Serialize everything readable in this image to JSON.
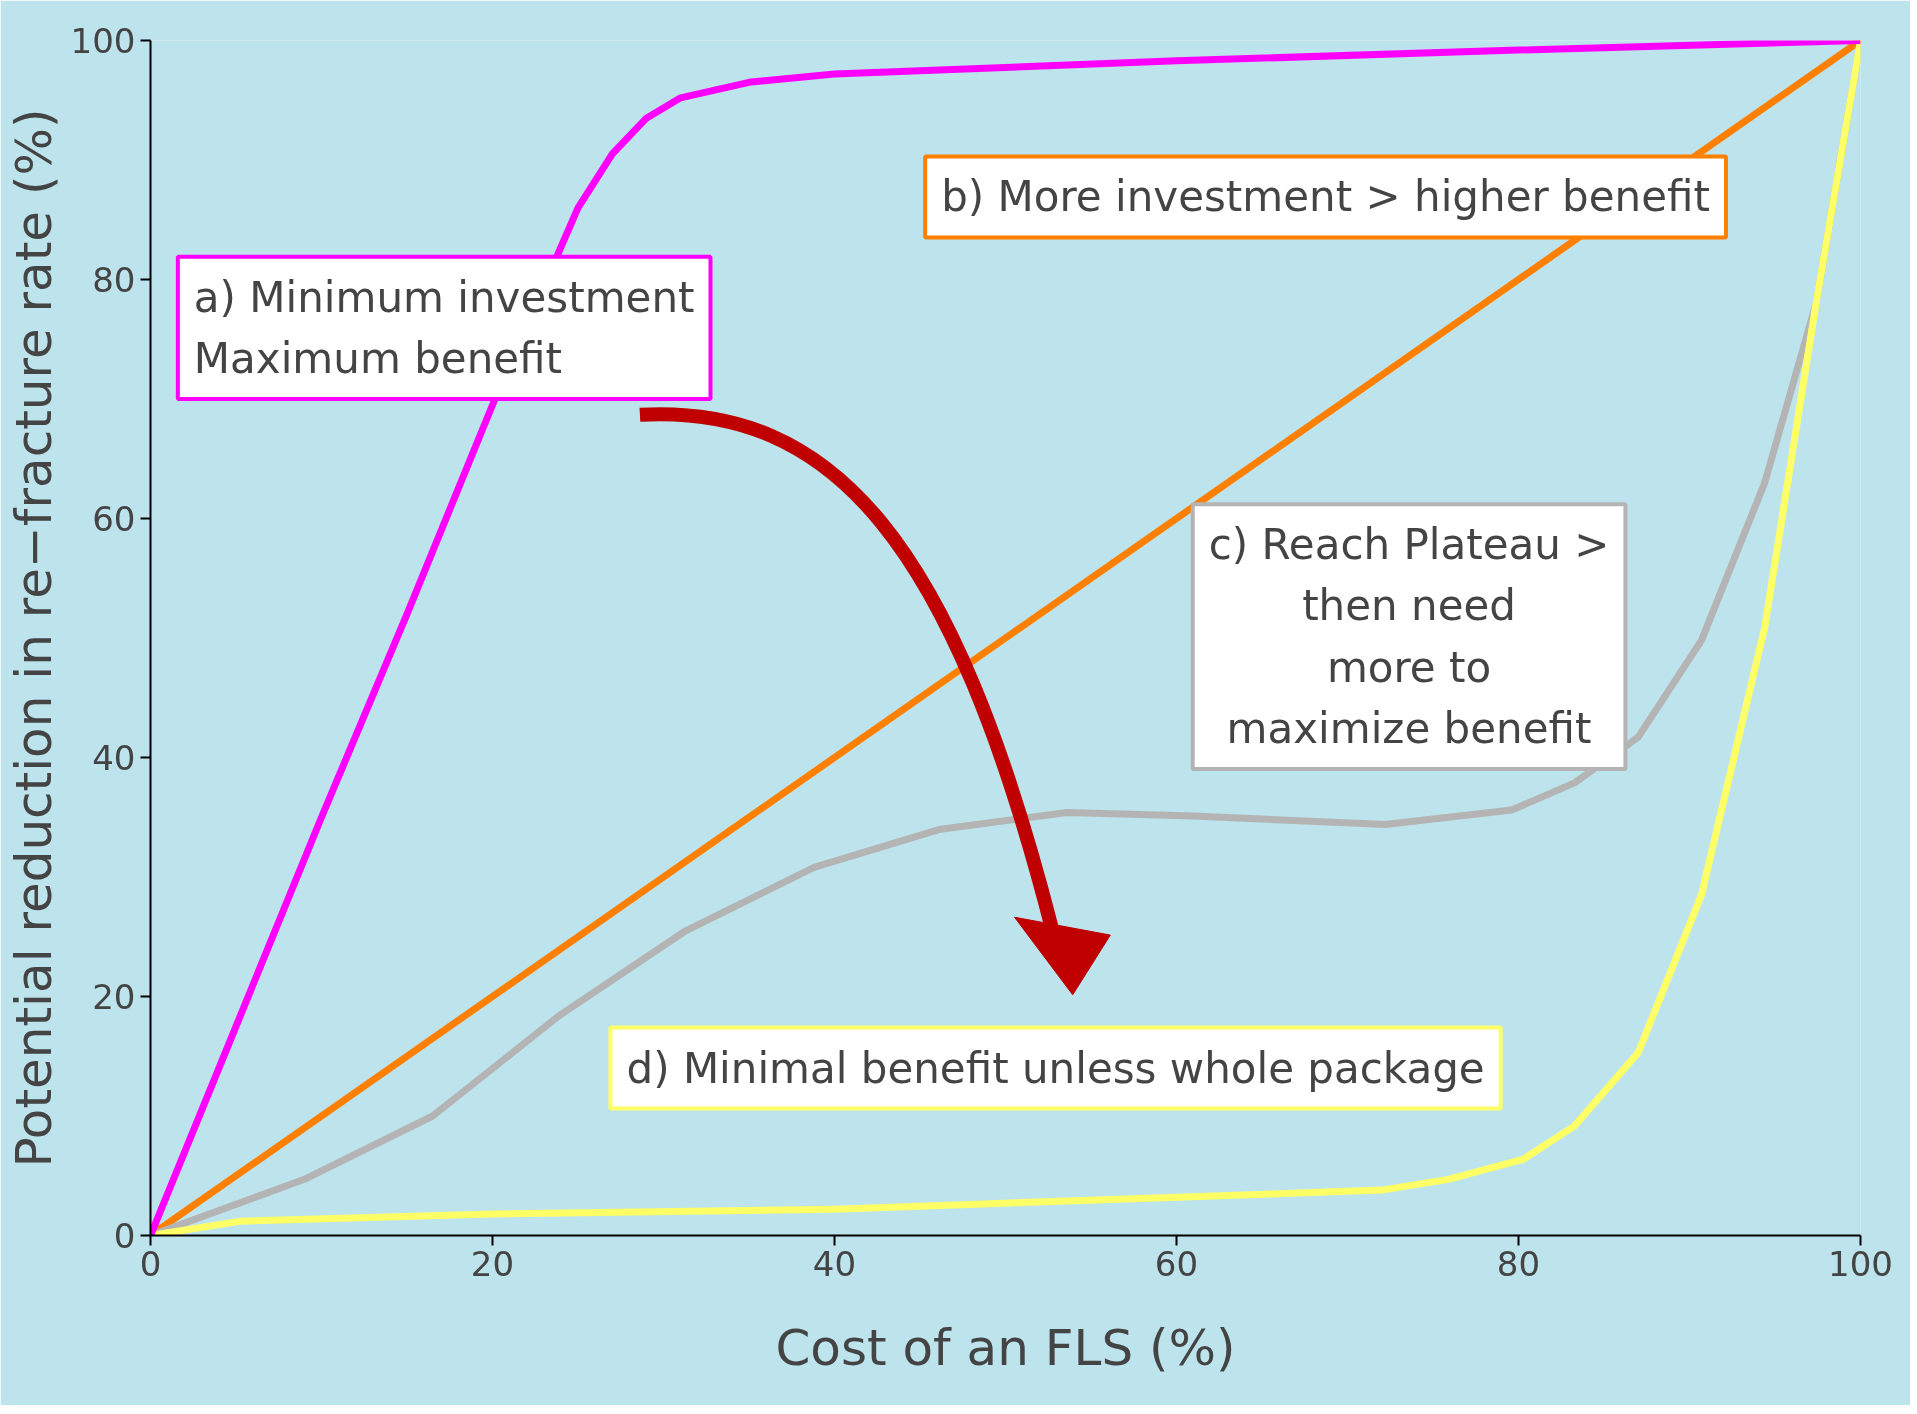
{
  "chart_data": {
    "type": "line",
    "xlabel": "Cost of an FLS (%)",
    "ylabel": "Potential reduction in re−fracture rate (%)",
    "xlim": [
      0,
      100
    ],
    "ylim": [
      0,
      100
    ],
    "xticks": [
      0,
      20,
      40,
      60,
      80,
      100
    ],
    "yticks": [
      0,
      20,
      40,
      60,
      80,
      100
    ],
    "grid": false,
    "legend": false,
    "marker": "none",
    "line_style": "solid",
    "series": [
      {
        "name": "a) Minimum investment\nMaximum benefit",
        "color": "#ff00ff",
        "x": [
          0,
          5,
          10,
          15,
          20,
          25,
          27,
          29,
          31,
          35,
          40,
          60,
          80,
          100
        ],
        "values": [
          0,
          17.5,
          35,
          52,
          69.5,
          86,
          90.5,
          93.5,
          95.2,
          96.5,
          97.2,
          98.3,
          99.2,
          100
        ]
      },
      {
        "name": "b) More investment > higher benefit",
        "color": "#ff8000",
        "x": [
          0,
          100
        ],
        "values": [
          0,
          100
        ]
      },
      {
        "name": "c) Reach Plateau >\nthen need\nmore to\nmaximize benefit",
        "color": "#b4b4b4",
        "x": [
          0,
          9,
          16.5,
          23.9,
          31.3,
          38.8,
          46.2,
          53.6,
          61,
          72.2,
          79.6,
          83.3,
          87,
          90.7,
          94.4,
          97.4,
          100
        ],
        "values": [
          0,
          4.7,
          10,
          18.4,
          25.5,
          30.8,
          34,
          35.4,
          35.1,
          34.4,
          35.6,
          37.9,
          41.7,
          49.8,
          63,
          78,
          100
        ]
      },
      {
        "name": "d) Minimal benefit unless whole package",
        "color": "#ffff66",
        "x": [
          0,
          5.3,
          20,
          40,
          60,
          72,
          75.9,
          80.3,
          83.3,
          87,
          90.7,
          94.4,
          97.4,
          100
        ],
        "values": [
          0,
          1.2,
          1.8,
          2.2,
          3.2,
          3.8,
          4.7,
          6.4,
          9.2,
          15.3,
          28.5,
          50.9,
          78,
          100
        ]
      }
    ]
  }
}
